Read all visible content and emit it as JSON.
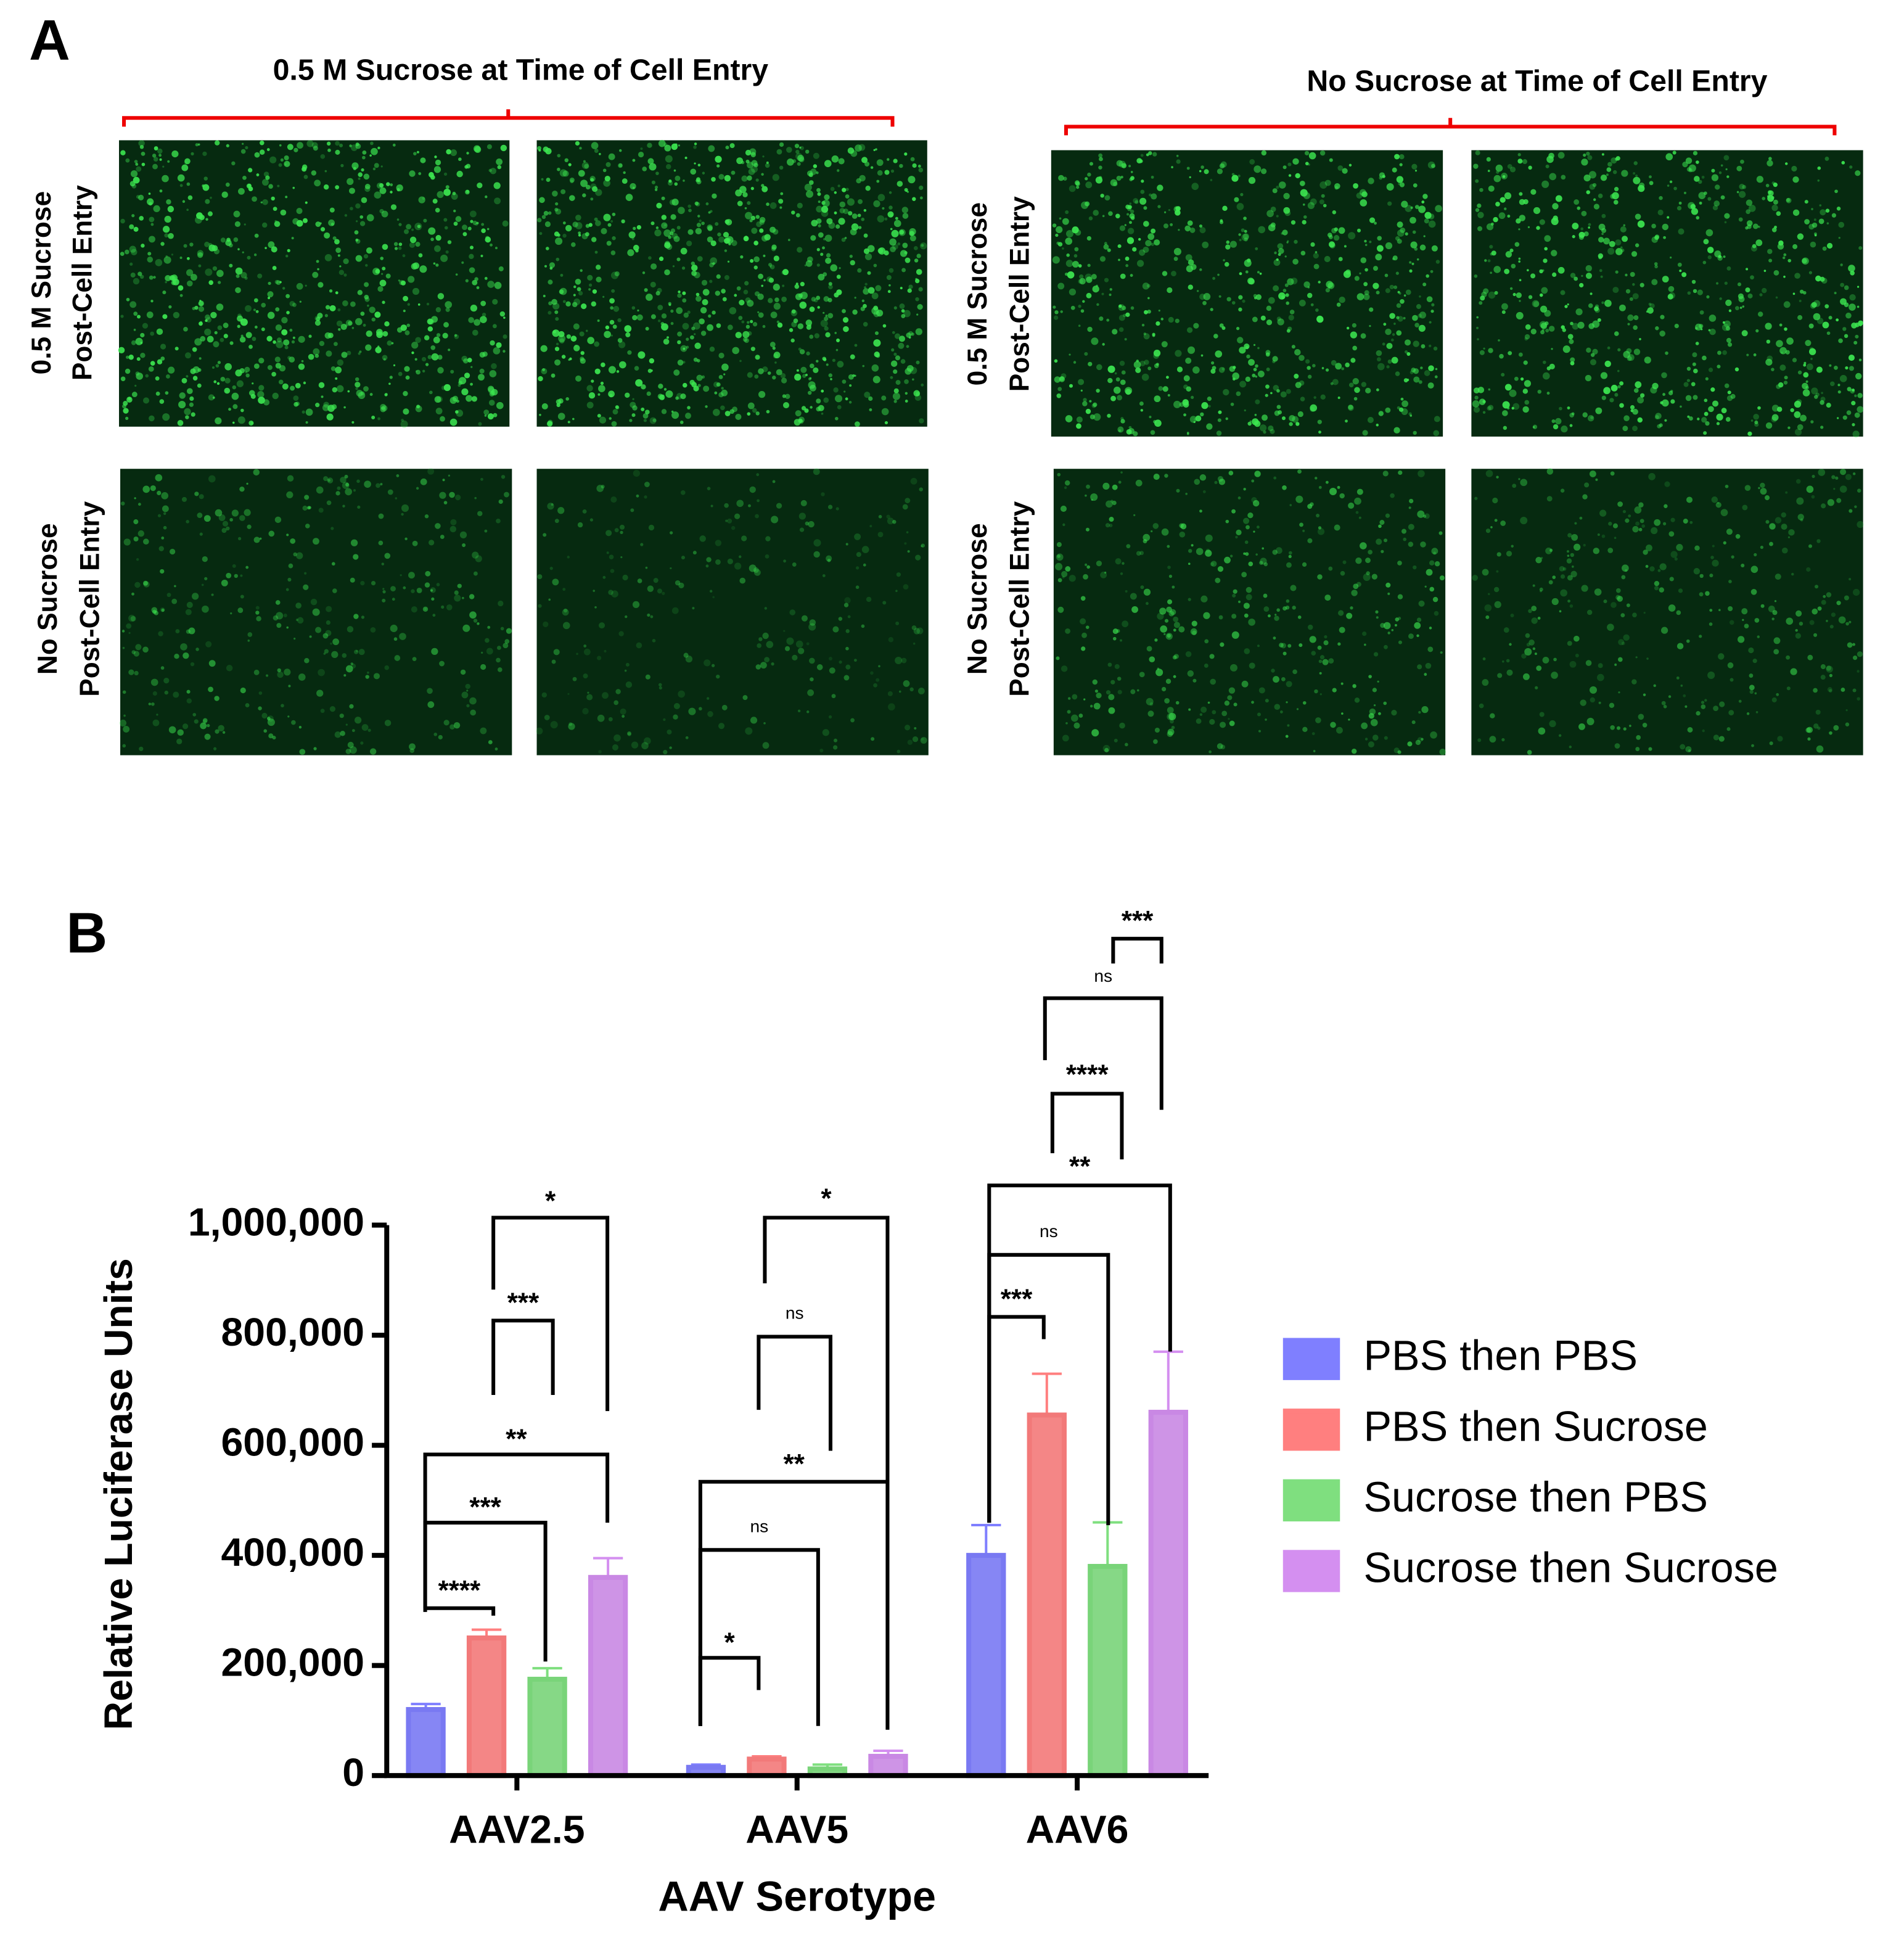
{
  "panel_a": {
    "label": "A",
    "column_headers": [
      "0.5 M Sucrose at Time of Cell Entry",
      "No Sucrose at Time of Cell Entry"
    ],
    "row_labels": [
      [
        "0.5 M Sucrose",
        "Post-Cell Entry"
      ],
      [
        "No Sucrose",
        "Post-Cell Entry"
      ]
    ]
  },
  "chart_data": {
    "type": "bar",
    "panel_label": "B",
    "x_label": "AAV Serotype",
    "y_label": "Relative Luciferase Units",
    "categories": [
      "AAV2.5",
      "AAV5",
      "AAV6"
    ],
    "series": [
      {
        "name": "PBS then PBS",
        "color": "#7f7fff",
        "values": [
          120000,
          15000,
          400000
        ],
        "errors": [
          10000,
          5000,
          55000
        ]
      },
      {
        "name": "PBS then Sucrose",
        "color": "#ff7f7f",
        "values": [
          250000,
          30000,
          655000
        ],
        "errors": [
          15000,
          5000,
          75000
        ]
      },
      {
        "name": "Sucrose then PBS",
        "color": "#7fdf7f",
        "values": [
          175000,
          12000,
          380000
        ],
        "errors": [
          20000,
          8000,
          80000
        ]
      },
      {
        "name": "Sucrose then Sucrose",
        "color": "#d48ff0",
        "values": [
          360000,
          35000,
          660000
        ],
        "errors": [
          35000,
          10000,
          110000
        ]
      }
    ],
    "ylim": [
      0,
      1000000
    ],
    "yticks": [
      0,
      {
        "value": 200000,
        "label": "200,000"
      },
      {
        "value": 400000,
        "label": "400,000"
      },
      {
        "value": 600000,
        "label": "600,000"
      },
      {
        "value": 800000,
        "label": "800,000"
      },
      {
        "value": 1000000,
        "label": "1,000,000"
      }
    ],
    "annotations": [
      "****",
      "***",
      "**",
      "***",
      "*",
      "*",
      "ns",
      "**",
      "ns",
      "*",
      "***",
      "ns",
      "**",
      "****",
      "ns",
      "***"
    ]
  }
}
